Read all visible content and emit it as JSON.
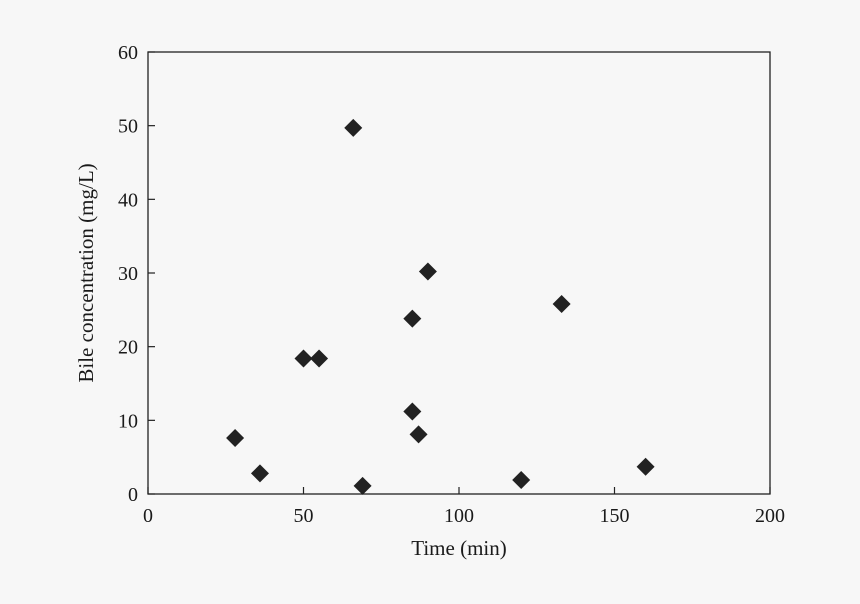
{
  "chart_data": {
    "type": "scatter",
    "title": "",
    "xlabel": "Time (min)",
    "ylabel": "Bile concentration (mg/L)",
    "xlim": [
      0,
      200
    ],
    "ylim": [
      0,
      60
    ],
    "xticks": [
      0,
      50,
      100,
      150,
      200
    ],
    "yticks": [
      0,
      10,
      20,
      30,
      40,
      50,
      60
    ],
    "grid": false,
    "marker": "diamond",
    "marker_color": "#222222",
    "points": [
      {
        "x": 28,
        "y": 7.6
      },
      {
        "x": 36,
        "y": 2.8
      },
      {
        "x": 50,
        "y": 18.4
      },
      {
        "x": 55,
        "y": 18.4
      },
      {
        "x": 66,
        "y": 49.7
      },
      {
        "x": 69,
        "y": 1.1
      },
      {
        "x": 85,
        "y": 23.8
      },
      {
        "x": 85,
        "y": 11.2
      },
      {
        "x": 87,
        "y": 8.1
      },
      {
        "x": 90,
        "y": 30.2
      },
      {
        "x": 120,
        "y": 1.9
      },
      {
        "x": 133,
        "y": 25.8
      },
      {
        "x": 160,
        "y": 3.7
      }
    ]
  }
}
